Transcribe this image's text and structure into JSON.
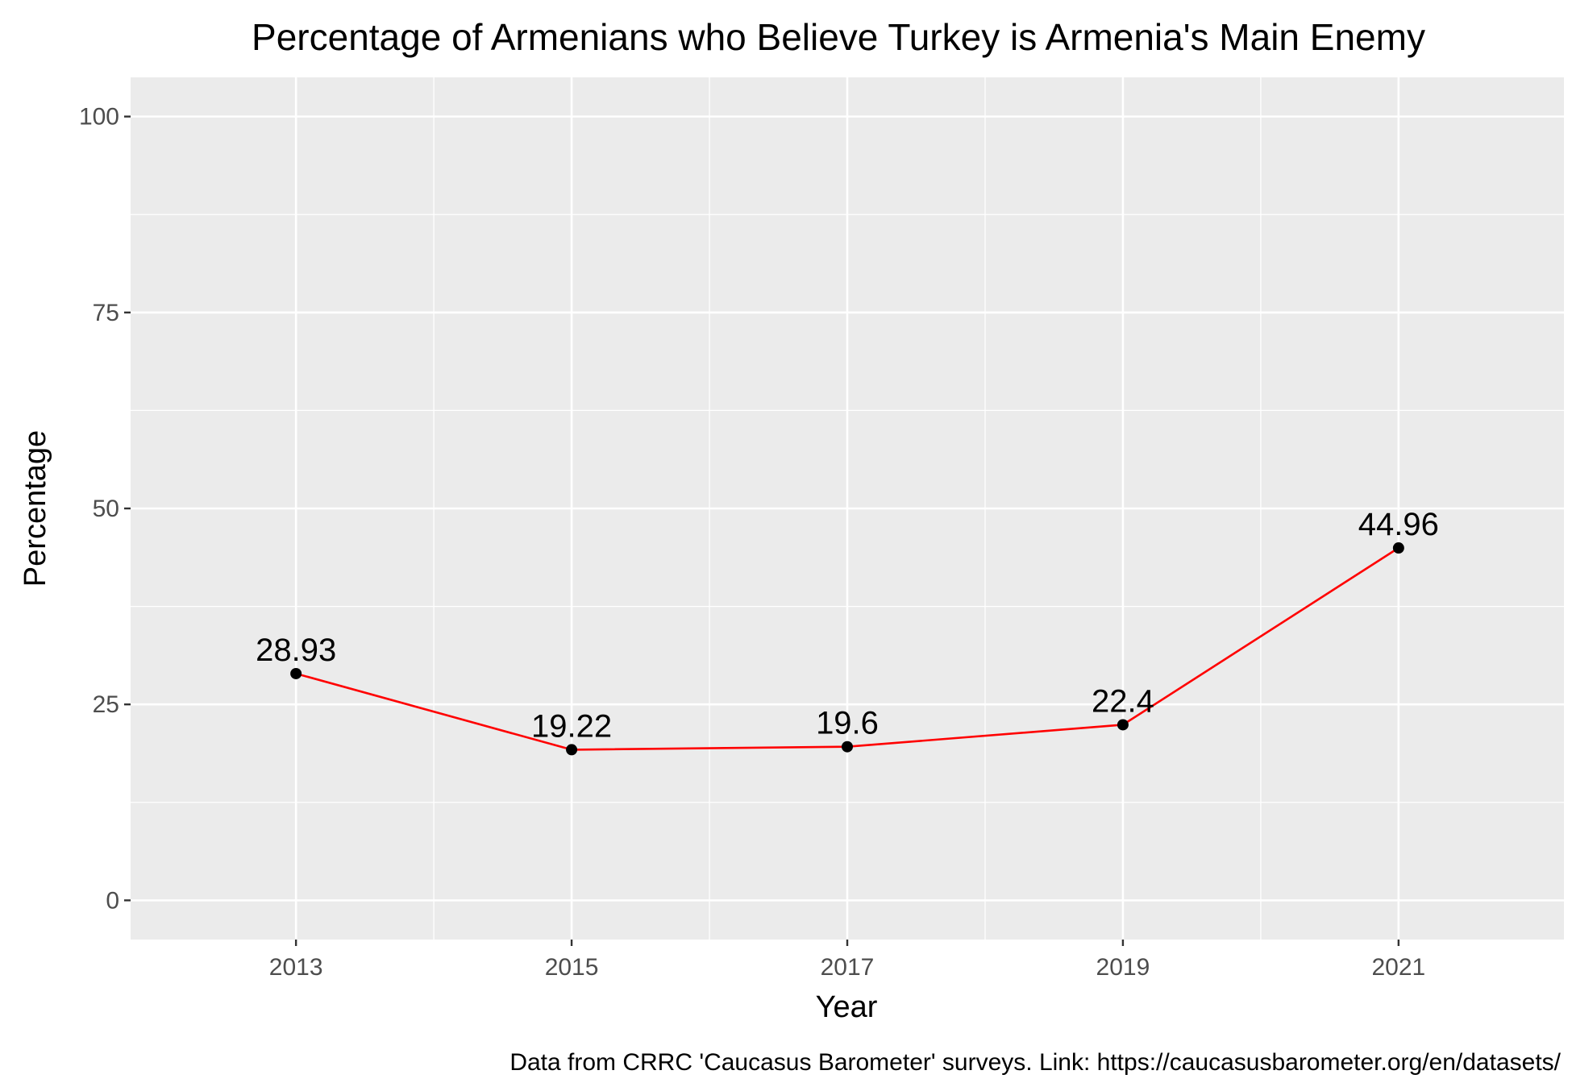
{
  "chart_data": {
    "type": "line",
    "title": "Percentage of Armenians who Believe Turkey is Armenia's Main Enemy",
    "xlabel": "Year",
    "ylabel": "Percentage",
    "caption": "Data from CRRC 'Caucasus Barometer' surveys. Link: https://caucasusbarometer.org/en/datasets/",
    "x": [
      2013,
      2015,
      2017,
      2019,
      2021
    ],
    "x_tick_labels": [
      "2013",
      "2015",
      "2017",
      "2019",
      "2021"
    ],
    "values": [
      28.93,
      19.22,
      19.6,
      22.4,
      44.96
    ],
    "data_labels": [
      "28.93",
      "19.22",
      "19.6",
      "22.4",
      "44.96"
    ],
    "y_ticks": [
      0,
      25,
      50,
      75,
      100
    ],
    "y_tick_labels": [
      "0",
      "25",
      "50",
      "75",
      "100"
    ],
    "xlim": [
      2011.8,
      2022.2
    ],
    "ylim": [
      -5,
      105
    ],
    "grid": true,
    "legend": "none",
    "colors": {
      "line": "#ff0000",
      "point": "#000000",
      "panel_background": "#ebebeb",
      "grid": "#ffffff"
    }
  }
}
